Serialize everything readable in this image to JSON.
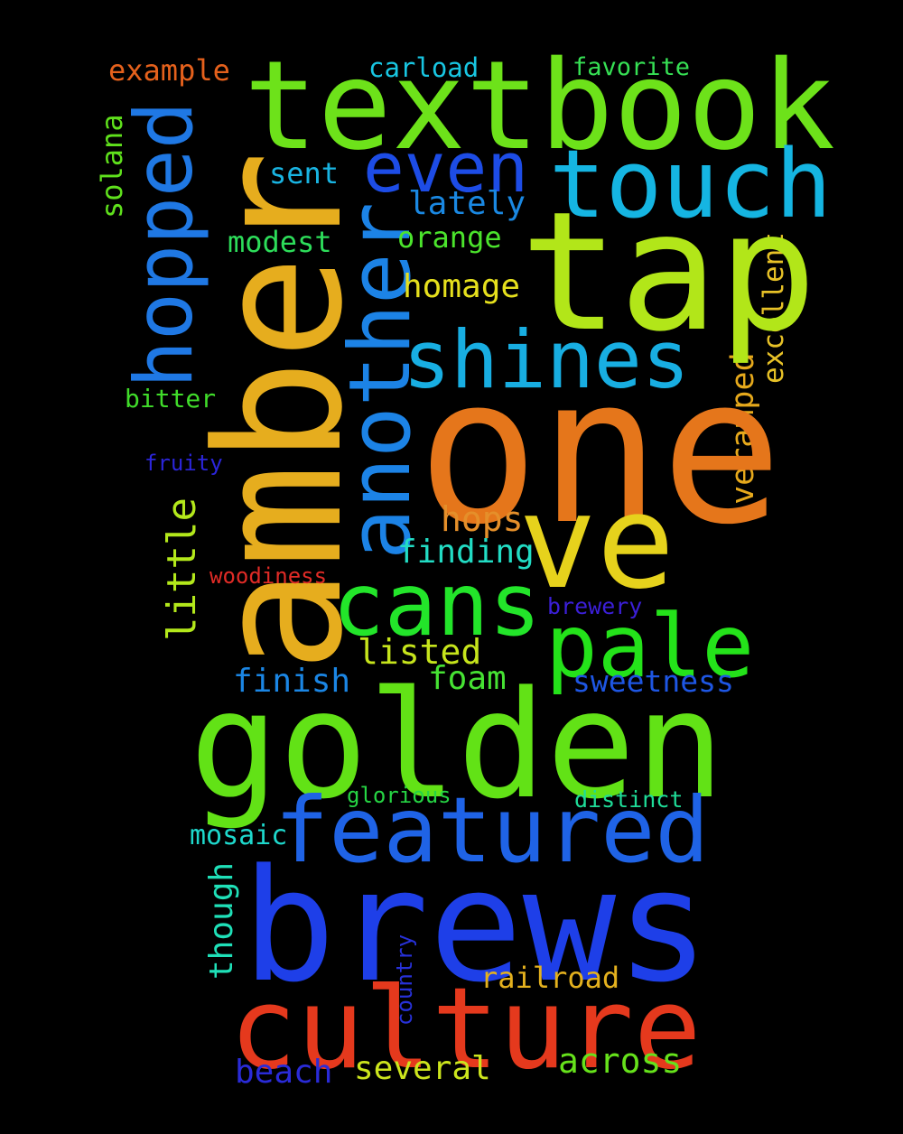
{
  "words": {
    "amber": {
      "text": "amber",
      "color": "#e6ad1e"
    },
    "one": {
      "text": "one",
      "color": "#e5761b"
    },
    "golden": {
      "text": "golden",
      "color": "#62e216"
    },
    "brews": {
      "text": "brews",
      "color": "#1e3fe8"
    },
    "textbook": {
      "text": "textbook",
      "color": "#6de21a"
    },
    "tap": {
      "text": "tap",
      "color": "#b2e619"
    },
    "ve": {
      "text": "ve",
      "color": "#e6d21c"
    },
    "culture": {
      "text": "culture",
      "color": "#e5391d"
    },
    "featured": {
      "text": "featured",
      "color": "#1f63e6"
    },
    "touch": {
      "text": "touch",
      "color": "#15b5e2"
    },
    "another": {
      "text": "another",
      "color": "#1c83e6"
    },
    "shines": {
      "text": "shines",
      "color": "#18aee2"
    },
    "hopped": {
      "text": "hopped",
      "color": "#1f78e4"
    },
    "cans": {
      "text": "cans",
      "color": "#23e52a"
    },
    "pale": {
      "text": "pale",
      "color": "#24e31a"
    },
    "even": {
      "text": "even",
      "color": "#1d4ce6"
    },
    "little": {
      "text": "little",
      "color": "#b3e81b"
    },
    "example": {
      "text": "example",
      "color": "#e5611c"
    },
    "carload": {
      "text": "carload",
      "color": "#18c6e2"
    },
    "favorite": {
      "text": "favorite",
      "color": "#36e054"
    },
    "solana": {
      "text": "solana",
      "color": "#5fe01c"
    },
    "sent": {
      "text": "sent",
      "color": "#19b4e2"
    },
    "lately": {
      "text": "lately",
      "color": "#1a88e2"
    },
    "modest": {
      "text": "modest",
      "color": "#2ddd5a"
    },
    "orange": {
      "text": "orange",
      "color": "#4be42c"
    },
    "homage": {
      "text": "homage",
      "color": "#e6e01d"
    },
    "excellent": {
      "text": "excellent",
      "color": "#e7c127"
    },
    "overamped": {
      "text": "overamped",
      "color": "#e6a91c"
    },
    "bitter": {
      "text": "bitter",
      "color": "#40dc2a"
    },
    "fruity": {
      "text": "fruity",
      "color": "#2b25d9"
    },
    "hops": {
      "text": "hops",
      "color": "#e58f2a"
    },
    "finding": {
      "text": "finding",
      "color": "#22dcc4"
    },
    "woodiness": {
      "text": "woodiness",
      "color": "#e02b26"
    },
    "brewery": {
      "text": "brewery",
      "color": "#3b1fd8"
    },
    "listed": {
      "text": "listed",
      "color": "#c6e41c"
    },
    "finish": {
      "text": "finish",
      "color": "#1b86e4"
    },
    "foam": {
      "text": "foam",
      "color": "#46e233"
    },
    "sweetness": {
      "text": "sweetness",
      "color": "#1e56e3"
    },
    "glorious": {
      "text": "glorious",
      "color": "#26d544"
    },
    "distinct": {
      "text": "distinct",
      "color": "#1fdc98"
    },
    "mosaic": {
      "text": "mosaic",
      "color": "#1ed8cc"
    },
    "though": {
      "text": "though",
      "color": "#1fe0b8"
    },
    "country": {
      "text": "country",
      "color": "#2731d8"
    },
    "railroad": {
      "text": "railroad",
      "color": "#e4b11e"
    },
    "several": {
      "text": "several",
      "color": "#cce51d"
    },
    "across": {
      "text": "across",
      "color": "#66e21b"
    },
    "beach": {
      "text": "beach",
      "color": "#2a2bd8"
    }
  }
}
